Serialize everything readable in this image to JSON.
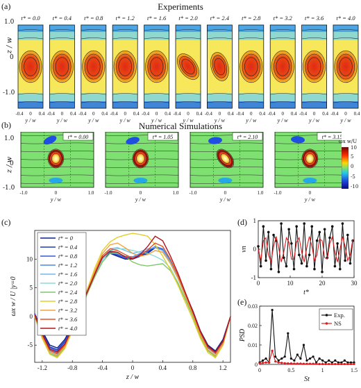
{
  "panel_a": {
    "label": "(a)",
    "title": "Experiments",
    "times": [
      "t* = 0.0",
      "t* = 0.4",
      "t* = 0.8",
      "t* = 1.2",
      "t* = 1.6",
      "t* = 2.0",
      "t* = 2.4",
      "t* = 2.8",
      "t* = 3.2",
      "t* = 3.6",
      "t* = 4.0"
    ],
    "ylabel": "z / w",
    "xlabel": "y / w",
    "yticks": [
      "1.0",
      "0",
      "-1.0"
    ],
    "xticks": [
      "-0.4",
      "0",
      "0.4"
    ]
  },
  "panel_b": {
    "label": "(b)",
    "title": "Numerical Simulations",
    "times": [
      "t* = 0.00",
      "t* = 1.05",
      "t* = 2.10",
      "t* = 3.15"
    ],
    "ylabel": "z / w",
    "xlabel": "y / w",
    "yticks": [
      "1.0",
      "0",
      "-1.0"
    ],
    "xticks": [
      "-1.0",
      "0",
      "1.0"
    ],
    "colorbar": {
      "label": "ωx w/U",
      "ticks": [
        "10",
        "5",
        "0",
        "-5",
        "-10"
      ]
    }
  },
  "chart_data": [
    {
      "panel": "(c)",
      "type": "line",
      "xlabel": "z / w",
      "ylabel": "ωx w / U |y=0",
      "xlim": [
        -1.3,
        1.3
      ],
      "ylim": [
        -8,
        15
      ],
      "xticks": [
        "-1.2",
        "-0.8",
        "-0.4",
        "0",
        "0.4",
        "0.8",
        "1.2"
      ],
      "yticks": [
        "-5",
        "0",
        "5",
        "10"
      ],
      "x": [
        -1.3,
        -1.2,
        -1.1,
        -1.0,
        -0.9,
        -0.8,
        -0.7,
        -0.6,
        -0.5,
        -0.4,
        -0.3,
        -0.2,
        -0.1,
        0.0,
        0.1,
        0.2,
        0.3,
        0.4,
        0.5,
        0.6,
        0.7,
        0.8,
        0.9,
        1.0,
        1.1,
        1.2,
        1.3
      ],
      "series": [
        {
          "name": "t* = 0",
          "color": "#0b1f8c",
          "values": [
            0.5,
            -2.5,
            -5.0,
            -5.5,
            -4.0,
            -1.5,
            1.5,
            4.5,
            7.5,
            10.0,
            11.0,
            10.5,
            10.0,
            10.0,
            10.5,
            11.0,
            12.0,
            11.5,
            9.5,
            7.0,
            4.0,
            1.0,
            -2.5,
            -5.0,
            -6.0,
            -4.0,
            0.0
          ]
        },
        {
          "name": "t* = 0.4",
          "color": "#1f3ab5",
          "values": [
            0.5,
            -2.8,
            -5.3,
            -5.8,
            -4.3,
            -1.6,
            1.4,
            4.4,
            7.4,
            10.1,
            11.2,
            10.6,
            10.1,
            10.1,
            10.6,
            11.2,
            12.1,
            11.6,
            9.6,
            7.0,
            3.9,
            0.9,
            -2.6,
            -5.2,
            -6.2,
            -4.2,
            0.0
          ]
        },
        {
          "name": "t* = 0.8",
          "color": "#3355d6",
          "values": [
            0.4,
            -3.0,
            -5.5,
            -6.0,
            -4.5,
            -1.8,
            1.3,
            4.3,
            7.3,
            10.2,
            11.3,
            10.8,
            10.3,
            10.2,
            10.8,
            11.4,
            12.2,
            11.7,
            9.7,
            7.1,
            3.9,
            0.8,
            -2.7,
            -5.3,
            -6.3,
            -4.3,
            0.0
          ]
        },
        {
          "name": "t* = 1.2",
          "color": "#4f86e6",
          "values": [
            0.3,
            -3.2,
            -5.8,
            -6.3,
            -4.8,
            -2.0,
            1.2,
            4.2,
            7.3,
            10.3,
            11.4,
            11.0,
            10.5,
            10.4,
            11.0,
            11.5,
            12.2,
            11.8,
            9.8,
            7.1,
            3.8,
            0.7,
            -2.9,
            -5.5,
            -6.5,
            -4.5,
            0.0
          ]
        },
        {
          "name": "t* = 1.6",
          "color": "#6fb8f0",
          "values": [
            0.2,
            -3.4,
            -6.0,
            -6.6,
            -5.0,
            -2.1,
            1.1,
            4.1,
            7.1,
            10.0,
            11.8,
            12.0,
            11.5,
            11.0,
            11.3,
            11.8,
            12.0,
            11.5,
            9.5,
            6.8,
            3.5,
            0.3,
            -3.2,
            -5.8,
            -6.8,
            -4.8,
            0.0
          ]
        },
        {
          "name": "t* = 2.0",
          "color": "#8fd8d8",
          "values": [
            0.1,
            -3.6,
            -6.3,
            -6.9,
            -5.3,
            -2.3,
            1.0,
            4.0,
            7.0,
            9.8,
            11.5,
            11.8,
            11.8,
            11.5,
            11.2,
            11.0,
            10.5,
            9.8,
            8.5,
            6.0,
            3.0,
            0.0,
            -3.5,
            -6.0,
            -7.0,
            -5.0,
            0.0
          ]
        },
        {
          "name": "t* = 2.4",
          "color": "#7fc56a",
          "values": [
            0.0,
            -3.8,
            -6.5,
            -7.0,
            -5.5,
            -2.5,
            0.8,
            4.0,
            7.0,
            9.5,
            11.0,
            11.0,
            10.5,
            9.5,
            9.0,
            8.8,
            9.0,
            9.2,
            8.0,
            5.8,
            3.0,
            0.0,
            -3.5,
            -6.0,
            -7.0,
            -5.0,
            0.0
          ]
        },
        {
          "name": "t* = 2.8",
          "color": "#e0cf28",
          "values": [
            0.0,
            -3.8,
            -6.6,
            -7.2,
            -5.6,
            -2.4,
            1.2,
            4.8,
            8.5,
            11.5,
            13.0,
            13.8,
            14.2,
            14.5,
            14.3,
            14.0,
            12.5,
            10.5,
            8.2,
            5.5,
            2.5,
            -0.5,
            -3.8,
            -6.3,
            -7.2,
            -5.0,
            0.0
          ]
        },
        {
          "name": "t* = 3.2",
          "color": "#f0a23a",
          "values": [
            0.1,
            -3.5,
            -6.2,
            -6.8,
            -5.2,
            -2.2,
            1.3,
            4.6,
            8.0,
            11.0,
            12.5,
            12.8,
            12.0,
            11.0,
            10.5,
            10.8,
            11.5,
            11.2,
            9.3,
            6.7,
            3.5,
            0.3,
            -3.2,
            -5.8,
            -6.8,
            -4.8,
            0.0
          ]
        },
        {
          "name": "t* = 3.6",
          "color": "#e0542a",
          "values": [
            0.2,
            -3.2,
            -5.9,
            -6.5,
            -5.0,
            -2.0,
            1.3,
            4.4,
            7.6,
            10.6,
            11.8,
            11.5,
            10.8,
            10.2,
            10.6,
            11.6,
            12.8,
            12.2,
            10.0,
            7.2,
            4.0,
            0.7,
            -2.8,
            -5.4,
            -6.4,
            -4.5,
            0.0
          ]
        },
        {
          "name": "t* = 4.0",
          "color": "#b0141e",
          "values": [
            0.3,
            -3.0,
            -5.7,
            -6.2,
            -4.8,
            -1.9,
            1.3,
            4.3,
            7.4,
            10.3,
            11.4,
            11.2,
            10.4,
            10.0,
            10.8,
            12.2,
            14.0,
            13.2,
            10.6,
            7.6,
            4.2,
            0.9,
            -2.6,
            -5.2,
            -6.2,
            -4.3,
            0.0
          ]
        }
      ]
    },
    {
      "panel": "(d)",
      "type": "line",
      "xlabel": "t*",
      "ylabel": "vn",
      "xlim": [
        0,
        30
      ],
      "ylim": [
        -1,
        1
      ],
      "xticks": [
        "0",
        "10",
        "20",
        "30"
      ],
      "yticks": [
        "1",
        "0",
        "-1"
      ],
      "series": [
        {
          "name": "Exp.",
          "color": "#111111",
          "x": [
            0,
            0.8,
            1.6,
            2.4,
            3.2,
            4.0,
            4.8,
            5.6,
            6.4,
            7.2,
            8.0,
            8.8,
            9.6,
            10.4,
            11.2,
            12.0,
            12.8,
            13.6,
            14.4,
            15.2,
            16.0,
            16.8,
            17.6,
            18.4,
            19.2,
            20.0,
            20.8,
            21.6,
            22.4,
            23.2,
            24.0,
            24.8,
            25.6,
            26.4,
            27.2,
            28.0,
            28.8,
            29.6
          ],
          "values": [
            0.1,
            -0.6,
            0.8,
            -0.4,
            0.6,
            -0.7,
            0.5,
            0.3,
            -0.8,
            0.9,
            -0.3,
            -0.6,
            0.7,
            0.2,
            -0.7,
            0.8,
            -0.2,
            -0.5,
            0.9,
            -0.6,
            -0.2,
            0.8,
            -0.7,
            0.3,
            0.6,
            -0.8,
            0.7,
            -0.3,
            0.4,
            0.8,
            -0.6,
            0.2,
            -0.7,
            0.9,
            -0.4,
            0.5,
            -0.5,
            0.3
          ]
        },
        {
          "name": "NS",
          "color": "#e41a1c",
          "x": [
            0,
            0.8,
            1.6,
            2.4,
            3.2,
            4.0,
            4.8,
            5.6,
            6.4,
            7.2,
            8.0,
            8.8,
            9.6,
            10.4,
            11.2,
            12.0,
            12.8,
            13.6,
            14.4,
            15.2,
            16.0,
            16.8,
            17.6,
            18.4,
            19.2,
            20.0,
            20.8,
            21.6,
            22.4,
            23.2,
            24.0,
            24.8,
            25.6,
            26.4,
            27.2,
            28.0,
            28.8,
            29.6
          ],
          "values": [
            0.0,
            -0.4,
            0.3,
            0.4,
            -0.2,
            -0.45,
            0.1,
            0.45,
            0.05,
            -0.45,
            -0.1,
            0.4,
            0.25,
            -0.35,
            -0.35,
            0.25,
            0.4,
            -0.1,
            -0.45,
            0.05,
            0.45,
            0.1,
            -0.4,
            -0.2,
            0.35,
            0.3,
            -0.3,
            -0.35,
            0.2,
            0.42,
            -0.1,
            -0.45,
            0.0,
            0.45,
            0.1,
            -0.4,
            -0.2,
            0.35
          ]
        }
      ]
    },
    {
      "panel": "(e)",
      "type": "line",
      "xlabel": "St",
      "ylabel": "PSD",
      "xlim": [
        0,
        1.5
      ],
      "ylim": [
        0,
        0.03
      ],
      "xticks": [
        "0",
        "0.5",
        "1",
        "1.5"
      ],
      "yticks": [
        "0.03",
        "0.02",
        "0.01",
        "0"
      ],
      "legend": [
        "Exp.",
        "NS"
      ],
      "legend_position": "top-right",
      "series": [
        {
          "name": "Exp.",
          "color": "#111111",
          "x": [
            0,
            0.05,
            0.1,
            0.15,
            0.2,
            0.25,
            0.3,
            0.35,
            0.4,
            0.45,
            0.5,
            0.55,
            0.6,
            0.65,
            0.7,
            0.75,
            0.8,
            0.85,
            0.9,
            0.95,
            1.0,
            1.05,
            1.1,
            1.15,
            1.2,
            1.25,
            1.3,
            1.35,
            1.4,
            1.45,
            1.5
          ],
          "values": [
            0.001,
            0.002,
            0.003,
            0.001,
            0.028,
            0.004,
            0.002,
            0.003,
            0.004,
            0.016,
            0.003,
            0.002,
            0.005,
            0.003,
            0.01,
            0.002,
            0.003,
            0.004,
            0.001,
            0.003,
            0.002,
            0.001,
            0.002,
            0.001,
            0.002,
            0.001,
            0.001,
            0.002,
            0.001,
            0.001,
            0.001
          ]
        },
        {
          "name": "NS",
          "color": "#e41a1c",
          "x": [
            0,
            0.05,
            0.1,
            0.15,
            0.2,
            0.25,
            0.3,
            0.35,
            0.4,
            0.45,
            0.5,
            0.55,
            0.6,
            0.65,
            0.7,
            0.75,
            0.8,
            0.85,
            0.9,
            0.95,
            1.0,
            1.05,
            1.1,
            1.15,
            1.2,
            1.25,
            1.3,
            1.35,
            1.4,
            1.45,
            1.5
          ],
          "values": [
            0.0005,
            0.0008,
            0.001,
            0.001,
            0.007,
            0.0015,
            0.001,
            0.0008,
            0.0006,
            0.0005,
            0.0005,
            0.0004,
            0.0004,
            0.0004,
            0.0003,
            0.0003,
            0.0003,
            0.0003,
            0.0003,
            0.0002,
            0.0002,
            0.0002,
            0.0002,
            0.0002,
            0.0002,
            0.0002,
            0.0002,
            0.0002,
            0.0002,
            0.0002,
            0.0002
          ]
        }
      ]
    }
  ]
}
